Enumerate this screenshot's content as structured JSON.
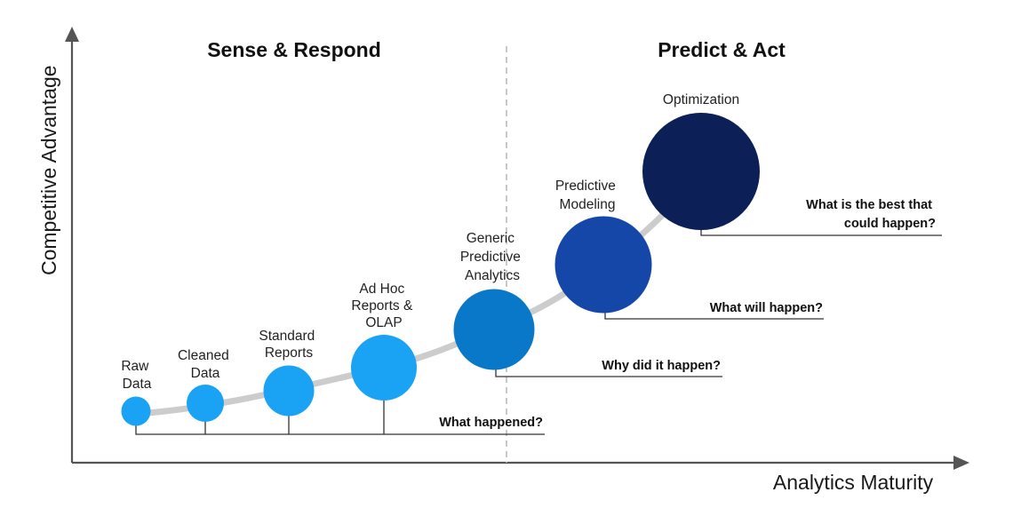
{
  "sections": {
    "left": "Sense & Respond",
    "right": "Predict & Act"
  },
  "axes": {
    "y_label": "Competitive Advantage",
    "x_label": "Analytics Maturity"
  },
  "stages": [
    {
      "lines": [
        "Raw",
        "Data"
      ],
      "color": "#1aa3f4"
    },
    {
      "lines": [
        "Cleaned",
        "Data"
      ],
      "color": "#1aa3f4"
    },
    {
      "lines": [
        "Standard",
        "Reports"
      ],
      "color": "#1aa3f4"
    },
    {
      "lines": [
        "Ad Hoc",
        "Reports &",
        "OLAP"
      ],
      "color": "#1aa3f4"
    },
    {
      "lines": [
        "Generic",
        "Predictive",
        "Analytics"
      ],
      "color": "#0a78c8"
    },
    {
      "lines": [
        "Predictive",
        "Modeling"
      ],
      "color": "#1447a8"
    },
    {
      "lines": [
        "Optimization"
      ],
      "color": "#0c1f57"
    }
  ],
  "questions": {
    "q1": "What happened?",
    "q2": "Why did it happen?",
    "q3": "What will happen?",
    "q4_line1": "What is the best that",
    "q4_line2": "could happen?"
  },
  "colors": {
    "axis": "#555555",
    "curve": "#cccccc",
    "divider": "#bbbbbb",
    "leader": "#333333"
  }
}
